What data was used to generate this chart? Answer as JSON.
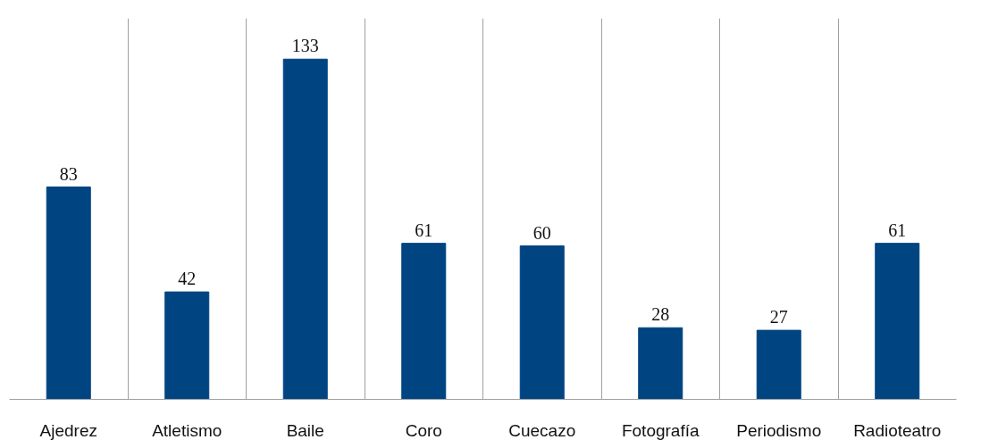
{
  "chart_data": {
    "type": "bar",
    "categories": [
      "Ajedrez",
      "Atletismo",
      "Baile",
      "Coro",
      "Cuecazo",
      "Fotografía",
      "Periodismo",
      "Radioteatro"
    ],
    "values": [
      83,
      42,
      133,
      61,
      60,
      28,
      27,
      61
    ],
    "color": "#004481",
    "data_labels": true,
    "grid": "x"
  }
}
